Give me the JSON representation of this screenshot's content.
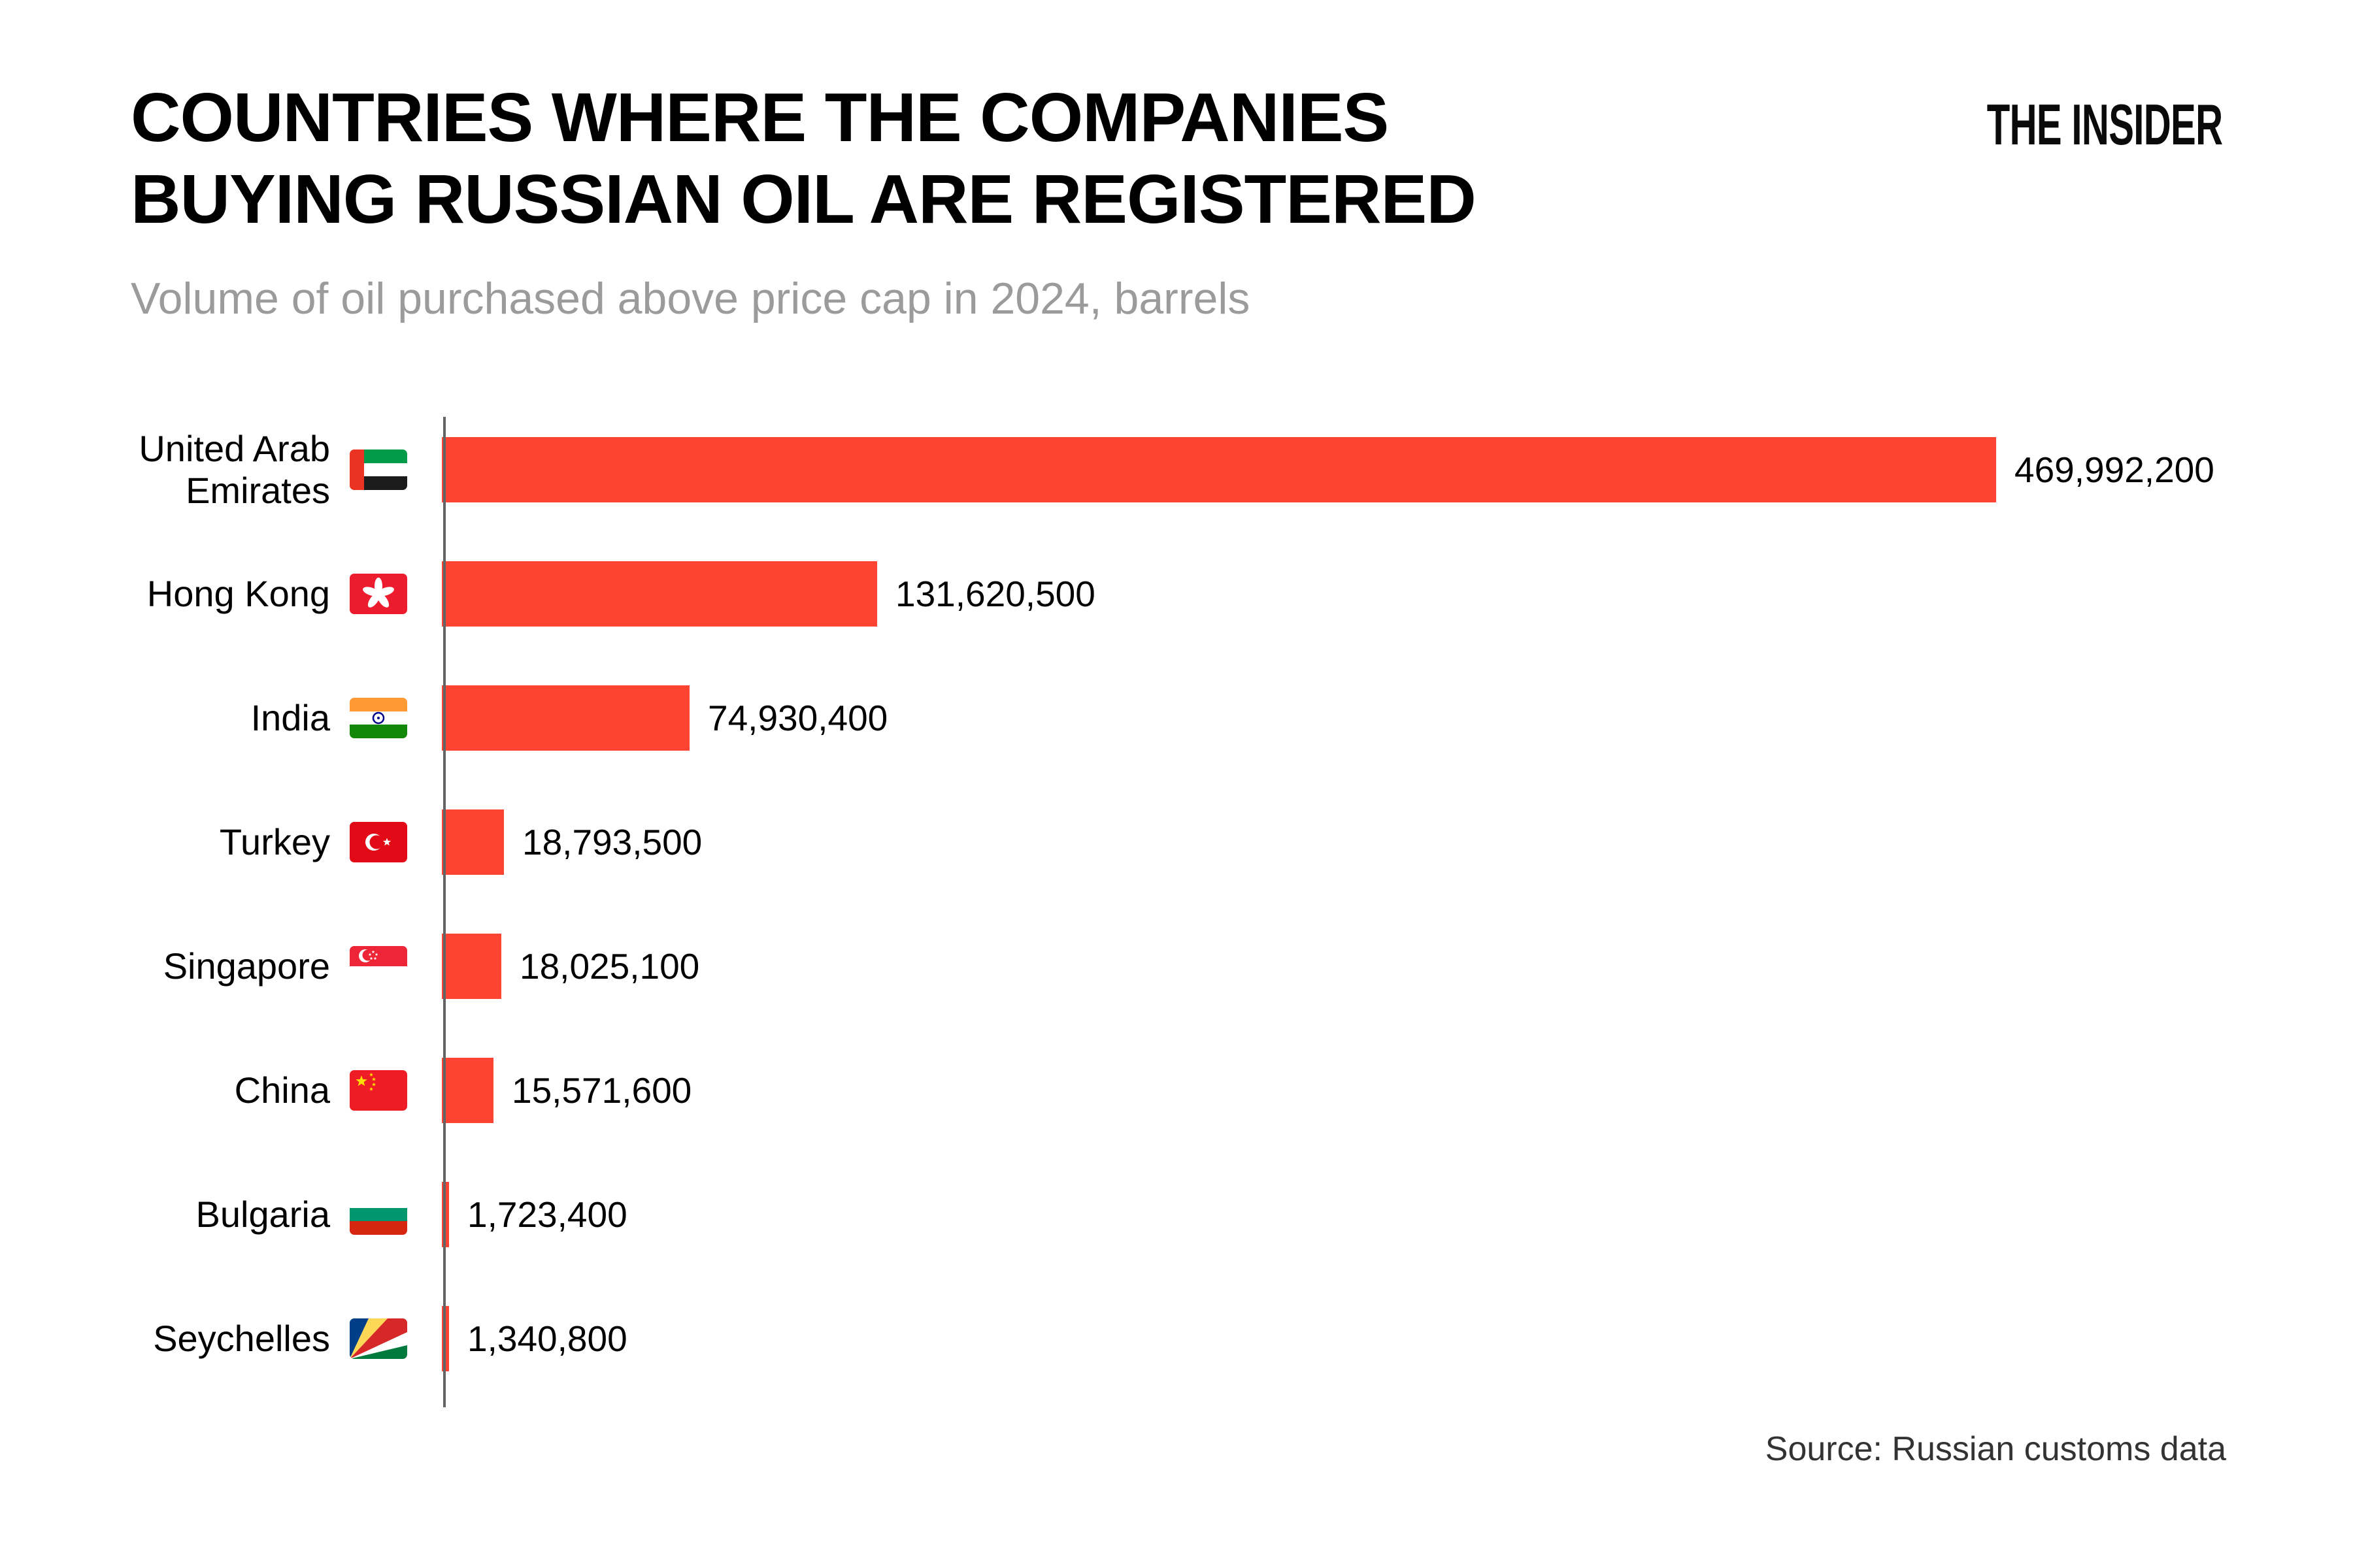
{
  "page": {
    "title_line1": "COUNTRIES WHERE THE COMPANIES",
    "title_line2": "BUYING RUSSIAN OIL ARE REGISTERED",
    "subtitle": "Volume of oil purchased above price cap in 2024, barrels",
    "brand": "THE INSIDER",
    "source": "Source: Russian customs data"
  },
  "colors": {
    "bar": "#FD4331",
    "axis": "#646464",
    "title": "#000000",
    "subtitle": "#9B9B9B",
    "source": "#333333",
    "background": "#FFFFFF"
  },
  "chart_data": {
    "type": "bar",
    "orientation": "horizontal",
    "title": "COUNTRIES WHERE THE COMPANIES BUYING RUSSIAN OIL ARE REGISTERED",
    "subtitle": "Volume of oil purchased above price cap in 2024, barrels",
    "unit": "barrels",
    "xlim": [
      0,
      469992200
    ],
    "grid": false,
    "legend": "none",
    "categories": [
      "United Arab Emirates",
      "Hong Kong",
      "India",
      "Turkey",
      "Singapore",
      "China",
      "Bulgaria",
      "Seychelles"
    ],
    "values": [
      469992200,
      131620500,
      74930400,
      18793500,
      18025100,
      15571600,
      1723400,
      1340800
    ],
    "value_labels": [
      "469,992,200",
      "131,620,500",
      "74,930,400",
      "18,793,500",
      "18,025,100",
      "15,571,600",
      "1,723,400",
      "1,340,800"
    ],
    "flag_icons": [
      "uae-flag-icon",
      "hong-kong-flag-icon",
      "india-flag-icon",
      "turkey-flag-icon",
      "singapore-flag-icon",
      "china-flag-icon",
      "bulgaria-flag-icon",
      "seychelles-flag-icon"
    ]
  }
}
